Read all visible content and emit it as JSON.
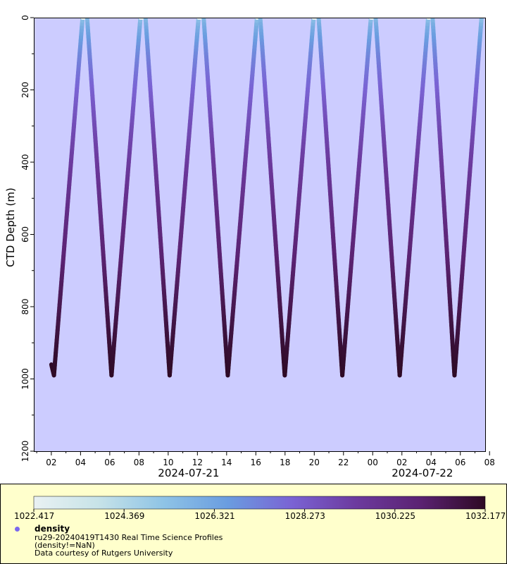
{
  "chart_data": {
    "type": "scatter",
    "ylabel": "CTD Depth (m)",
    "ylim": [
      1200,
      0
    ],
    "y_ticks": [
      "0",
      "200",
      "400",
      "600",
      "800",
      "1000",
      "1200"
    ],
    "x_range_hours": [
      0.8,
      31.7
    ],
    "x_ticks": [
      {
        "label": "02",
        "h": 2
      },
      {
        "label": "04",
        "h": 4
      },
      {
        "label": "06",
        "h": 6
      },
      {
        "label": "08",
        "h": 8
      },
      {
        "label": "10",
        "h": 10
      },
      {
        "label": "12",
        "h": 12
      },
      {
        "label": "14",
        "h": 14
      },
      {
        "label": "16",
        "h": 16
      },
      {
        "label": "18",
        "h": 18
      },
      {
        "label": "20",
        "h": 20
      },
      {
        "label": "22",
        "h": 22
      },
      {
        "label": "00",
        "h": 24
      },
      {
        "label": "02",
        "h": 26
      },
      {
        "label": "04",
        "h": 28
      },
      {
        "label": "06",
        "h": 30
      },
      {
        "label": "08",
        "h": 32
      }
    ],
    "date_labels": [
      {
        "label": "2024-07-21",
        "h": 11.4
      },
      {
        "label": "2024-07-22",
        "h": 27.4
      }
    ],
    "profile_vertices": [
      {
        "h": 2.0,
        "depth": 960
      },
      {
        "h": 2.18,
        "depth": 990
      },
      {
        "h": 4.14,
        "depth": 0
      },
      {
        "h": 4.45,
        "depth": 0
      },
      {
        "h": 6.12,
        "depth": 990
      },
      {
        "h": 8.1,
        "depth": 0
      },
      {
        "h": 8.45,
        "depth": 0
      },
      {
        "h": 10.1,
        "depth": 990
      },
      {
        "h": 12.08,
        "depth": 0
      },
      {
        "h": 12.43,
        "depth": 0
      },
      {
        "h": 14.08,
        "depth": 990
      },
      {
        "h": 16.08,
        "depth": 0
      },
      {
        "h": 16.3,
        "depth": 0
      },
      {
        "h": 17.98,
        "depth": 990
      },
      {
        "h": 19.95,
        "depth": 0
      },
      {
        "h": 20.3,
        "depth": 0
      },
      {
        "h": 21.92,
        "depth": 990
      },
      {
        "h": 23.88,
        "depth": 0
      },
      {
        "h": 24.2,
        "depth": 0
      },
      {
        "h": 25.85,
        "depth": 990
      },
      {
        "h": 27.8,
        "depth": 0
      },
      {
        "h": 28.1,
        "depth": 0
      },
      {
        "h": 29.6,
        "depth": 990
      },
      {
        "h": 31.45,
        "depth": 0
      }
    ],
    "colorbar": {
      "variable": "density",
      "min": 1022.417,
      "max": 1032.177,
      "tick_labels": [
        "1022.417",
        "1024.369",
        "1026.321",
        "1028.273",
        "1030.225",
        "1032.177"
      ],
      "colors": [
        "#e9f1f2",
        "#c7e3e8",
        "#8fc4e6",
        "#6a9de0",
        "#7a63d4",
        "#6c3a9e",
        "#5b2272",
        "#2d0a24"
      ]
    }
  },
  "legend": {
    "title": "density",
    "source": "ru29-20240419T1430 Real Time Science Profiles",
    "constraint": "(density!=NaN)",
    "credit": "Data courtesy of Rutgers University"
  },
  "colors": {
    "plot_background": "#ccccff",
    "legend_background": "#ffffcc"
  }
}
